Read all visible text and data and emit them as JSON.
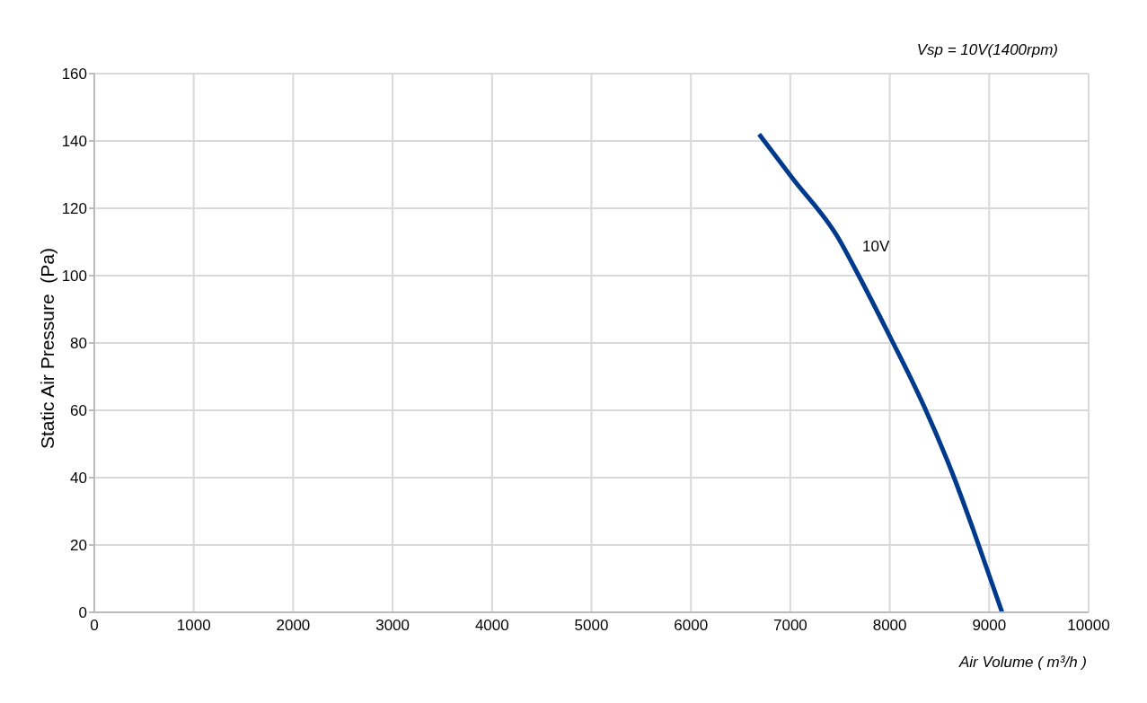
{
  "chart_data": {
    "type": "line",
    "title": "Vsp = 10V(1400rpm)",
    "xlabel": "Air Volume ( m³/h )",
    "ylabel": "Static Air Pressure  (Pa)",
    "series": [
      {
        "name": "10V",
        "color": "#003a8c",
        "x": [
          6686,
          7020,
          7486,
          7652,
          8017,
          8348,
          8647,
          8846,
          9130
        ],
        "values": [
          142,
          129,
          111,
          102,
          81,
          61,
          40,
          24,
          0
        ]
      }
    ],
    "xlim": [
      0,
      10000
    ],
    "xticks": [
      0,
      1000,
      2000,
      3000,
      4000,
      5000,
      6000,
      7000,
      8000,
      9000,
      10000
    ],
    "ylim": [
      0,
      160
    ],
    "yticks": [
      0,
      20,
      40,
      60,
      80,
      100,
      120,
      140,
      160
    ],
    "grid": true,
    "legend": false,
    "marker": "none",
    "line_style": "solid"
  }
}
